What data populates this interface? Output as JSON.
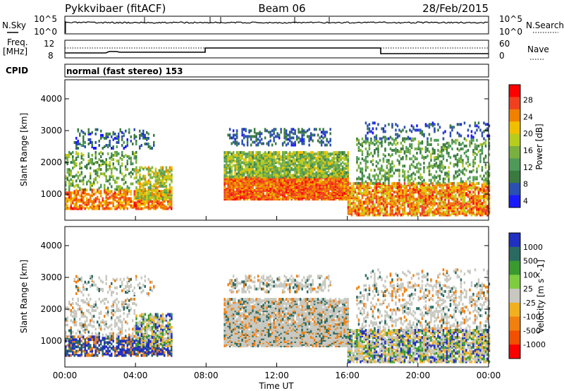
{
  "header": {
    "radar": "Pykkvibaer (fitACF)",
    "beam": "Beam 06",
    "date": "28/Feb/2015"
  },
  "side_labels": {
    "nsky": "N.Sky",
    "nsearch": "N.Search",
    "freq_line1": "Freq.",
    "freq_line2": "[MHz]",
    "nave": "Nave",
    "cpid": "CPID"
  },
  "cpid_text": "normal (fast stereo) 153",
  "noise_panel": {
    "left_ticks": [
      "10^5",
      "10^0"
    ],
    "right_ticks": [
      "10^5",
      "10^0"
    ]
  },
  "freq_panel": {
    "left_ticks": [
      "12",
      "8"
    ],
    "right_ticks": [
      "60",
      "0"
    ]
  },
  "chart_data": [
    {
      "type": "heatmap",
      "title": "",
      "parameter": "Power",
      "xlabel": "",
      "ylabel": "Slant Range [km]",
      "colorbar_label": "Power [dB]",
      "colorbar_ticks": [
        "4",
        "8",
        "12",
        "16",
        "20",
        "24",
        "28"
      ],
      "colorscale": [
        "#1a1aff",
        "#2a50b0",
        "#3a7a40",
        "#4f9a5a",
        "#7ab040",
        "#b8cc20",
        "#f0c000",
        "#f08000",
        "#f04020",
        "#ff0000"
      ],
      "x_ticks": [
        "00:00",
        "04:00",
        "08:00",
        "12:00",
        "16:00",
        "20:00",
        "00:00"
      ],
      "y_ticks": [
        "1000",
        "2000",
        "3000",
        "4000"
      ],
      "ylim": [
        180,
        4600
      ],
      "xlim_hours": [
        0,
        24
      ]
    },
    {
      "type": "heatmap",
      "title": "",
      "parameter": "Velocity",
      "xlabel": "Time UT",
      "ylabel": "Slant Range [km]",
      "colorbar_label": "Velocity [m s^-1]",
      "colorbar_ticks": [
        "1000",
        "500",
        "100",
        "25",
        "-25",
        "-100",
        "-500",
        "-1000"
      ],
      "colorscale": [
        "#2030c0",
        "#2a6a60",
        "#3a9a30",
        "#80cc40",
        "#c8c8c0",
        "#f0b020",
        "#f08010",
        "#f05000",
        "#ff0000"
      ],
      "x_ticks": [
        "00:00",
        "04:00",
        "08:00",
        "12:00",
        "16:00",
        "20:00",
        "00:00"
      ],
      "y_ticks": [
        "1000",
        "2000",
        "3000",
        "4000"
      ],
      "ylim": [
        180,
        4600
      ],
      "xlim_hours": [
        0,
        24
      ]
    }
  ]
}
